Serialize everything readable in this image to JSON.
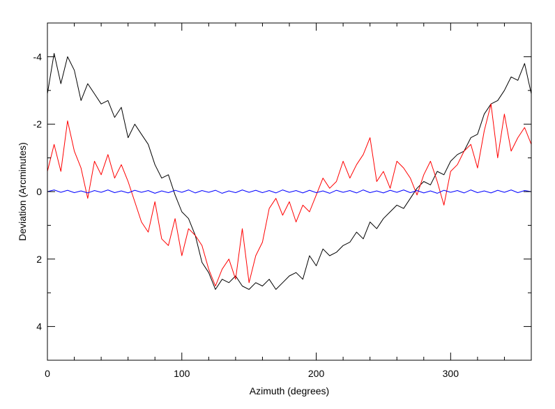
{
  "chart_data": {
    "type": "line",
    "title": "",
    "xlabel": "Azimuth (degrees)",
    "ylabel": "Deviation (Arcminutes)",
    "xlim": [
      0,
      360
    ],
    "ylim": [
      5,
      -5
    ],
    "y_axis_inverted": true,
    "grid": false,
    "legend": "none",
    "x_ticks": [
      {
        "value": 0,
        "label": "0"
      },
      {
        "value": 100,
        "label": "100"
      },
      {
        "value": 200,
        "label": "200"
      },
      {
        "value": 300,
        "label": "300"
      }
    ],
    "y_ticks": [
      {
        "value": -4,
        "label": "-4"
      },
      {
        "value": -2,
        "label": "-2"
      },
      {
        "value": 0,
        "label": "0"
      },
      {
        "value": 2,
        "label": "2"
      },
      {
        "value": 4,
        "label": "4"
      }
    ],
    "series": [
      {
        "color": "#000000",
        "x": [
          0,
          5,
          10,
          15,
          20,
          25,
          30,
          35,
          40,
          45,
          50,
          55,
          60,
          65,
          70,
          75,
          80,
          85,
          90,
          95,
          100,
          105,
          110,
          115,
          120,
          125,
          130,
          135,
          140,
          145,
          150,
          155,
          160,
          165,
          170,
          175,
          180,
          185,
          190,
          195,
          200,
          205,
          210,
          215,
          220,
          225,
          230,
          235,
          240,
          245,
          250,
          255,
          260,
          265,
          270,
          275,
          280,
          285,
          290,
          295,
          300,
          305,
          310,
          315,
          320,
          325,
          330,
          335,
          340,
          345,
          350,
          355,
          360
        ],
        "values": [
          -2.9,
          -4.1,
          -3.2,
          -4.0,
          -3.6,
          -2.7,
          -3.2,
          -2.9,
          -2.6,
          -2.7,
          -2.2,
          -2.5,
          -1.6,
          -2.0,
          -1.7,
          -1.4,
          -0.8,
          -0.4,
          -0.5,
          0.1,
          0.6,
          0.8,
          1.3,
          2.1,
          2.4,
          2.9,
          2.6,
          2.7,
          2.5,
          2.8,
          2.9,
          2.7,
          2.8,
          2.6,
          2.9,
          2.7,
          2.5,
          2.4,
          2.6,
          1.9,
          2.2,
          1.7,
          1.9,
          1.8,
          1.6,
          1.5,
          1.2,
          1.4,
          0.9,
          1.1,
          0.8,
          0.6,
          0.4,
          0.5,
          0.2,
          -0.1,
          -0.3,
          -0.2,
          -0.6,
          -0.5,
          -0.9,
          -1.1,
          -1.2,
          -1.6,
          -1.7,
          -2.3,
          -2.6,
          -2.7,
          -3.0,
          -3.4,
          -3.3,
          -3.8,
          -2.9
        ]
      },
      {
        "color": "#ff0000",
        "x": [
          0,
          5,
          10,
          15,
          20,
          25,
          30,
          35,
          40,
          45,
          50,
          55,
          60,
          65,
          70,
          75,
          80,
          85,
          90,
          95,
          100,
          105,
          110,
          115,
          120,
          125,
          130,
          135,
          140,
          145,
          150,
          155,
          160,
          165,
          170,
          175,
          180,
          185,
          190,
          195,
          200,
          205,
          210,
          215,
          220,
          225,
          230,
          235,
          240,
          245,
          250,
          255,
          260,
          265,
          270,
          275,
          280,
          285,
          290,
          295,
          300,
          305,
          310,
          315,
          320,
          325,
          330,
          335,
          340,
          345,
          350,
          355,
          360
        ],
        "values": [
          -0.6,
          -1.4,
          -0.6,
          -2.1,
          -1.2,
          -0.7,
          0.2,
          -0.9,
          -0.5,
          -1.1,
          -0.4,
          -0.8,
          -0.3,
          0.3,
          0.9,
          1.2,
          0.3,
          1.4,
          1.6,
          0.8,
          1.9,
          1.1,
          1.3,
          1.6,
          2.3,
          2.8,
          2.3,
          2.0,
          2.6,
          1.1,
          2.7,
          1.9,
          1.5,
          0.5,
          0.2,
          0.7,
          0.3,
          0.9,
          0.4,
          0.6,
          0.1,
          -0.4,
          -0.1,
          -0.3,
          -0.9,
          -0.4,
          -0.8,
          -1.1,
          -1.6,
          -0.3,
          -0.6,
          -0.1,
          -0.9,
          -0.7,
          -0.4,
          0.1,
          -0.5,
          -0.9,
          -0.3,
          0.4,
          -0.6,
          -0.8,
          -1.2,
          -1.4,
          -0.7,
          -1.8,
          -2.6,
          -1.0,
          -2.3,
          -1.2,
          -1.6,
          -1.9,
          -1.4
        ]
      },
      {
        "color": "#0000ff",
        "x": [
          0,
          5,
          10,
          15,
          20,
          25,
          30,
          35,
          40,
          45,
          50,
          55,
          60,
          65,
          70,
          75,
          80,
          85,
          90,
          95,
          100,
          105,
          110,
          115,
          120,
          125,
          130,
          135,
          140,
          145,
          150,
          155,
          160,
          165,
          170,
          175,
          180,
          185,
          190,
          195,
          200,
          205,
          210,
          215,
          220,
          225,
          230,
          235,
          240,
          245,
          250,
          255,
          260,
          265,
          270,
          275,
          280,
          285,
          290,
          295,
          300,
          305,
          310,
          315,
          320,
          325,
          330,
          335,
          340,
          345,
          350,
          355,
          360
        ],
        "values": [
          0.0,
          -0.05,
          0.02,
          -0.04,
          0.03,
          -0.02,
          0.04,
          -0.03,
          0.02,
          -0.05,
          0.03,
          -0.02,
          0.04,
          -0.04,
          0.02,
          -0.03,
          0.05,
          -0.02,
          0.03,
          -0.04,
          0.02,
          -0.05,
          0.04,
          -0.03,
          0.02,
          -0.04,
          0.05,
          -0.02,
          0.03,
          -0.05,
          0.02,
          -0.04,
          0.03,
          -0.03,
          0.04,
          -0.05,
          0.02,
          -0.03,
          0.04,
          -0.04,
          0.03,
          -0.02,
          0.05,
          -0.04,
          0.02,
          -0.03,
          0.04,
          -0.05,
          0.03,
          -0.02,
          0.04,
          -0.04,
          0.02,
          -0.05,
          0.03,
          -0.03,
          0.04,
          -0.02,
          0.05,
          -0.04,
          0.02,
          -0.03,
          0.04,
          -0.05,
          0.03,
          -0.02,
          0.04,
          -0.04,
          0.02,
          -0.05,
          0.03,
          -0.03,
          0.0
        ]
      }
    ]
  }
}
